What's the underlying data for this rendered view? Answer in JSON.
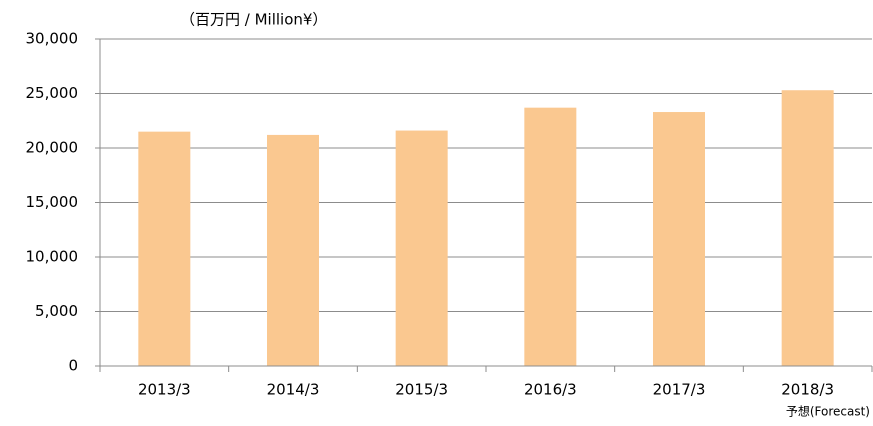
{
  "chart_data": {
    "type": "bar",
    "unit_label": "（百万円 / Million¥）",
    "annotation": "予想(Forecast)",
    "categories": [
      "2013/3",
      "2014/3",
      "2015/3",
      "2016/3",
      "2017/3",
      "2018/3"
    ],
    "values": [
      21500,
      21200,
      21600,
      23700,
      23300,
      25300
    ],
    "color": "#fac890",
    "ylim": [
      0,
      30000
    ],
    "yticks": [
      0,
      {
        "value": 5000,
        "label": "5,000"
      },
      {
        "value": 10000,
        "label": "10,000"
      },
      {
        "value": 15000,
        "label": "15,000"
      },
      {
        "value": 20000,
        "label": "20,000"
      },
      {
        "value": 25000,
        "label": "25,000"
      },
      {
        "value": 30000,
        "label": "30,000"
      }
    ],
    "grid": true
  }
}
